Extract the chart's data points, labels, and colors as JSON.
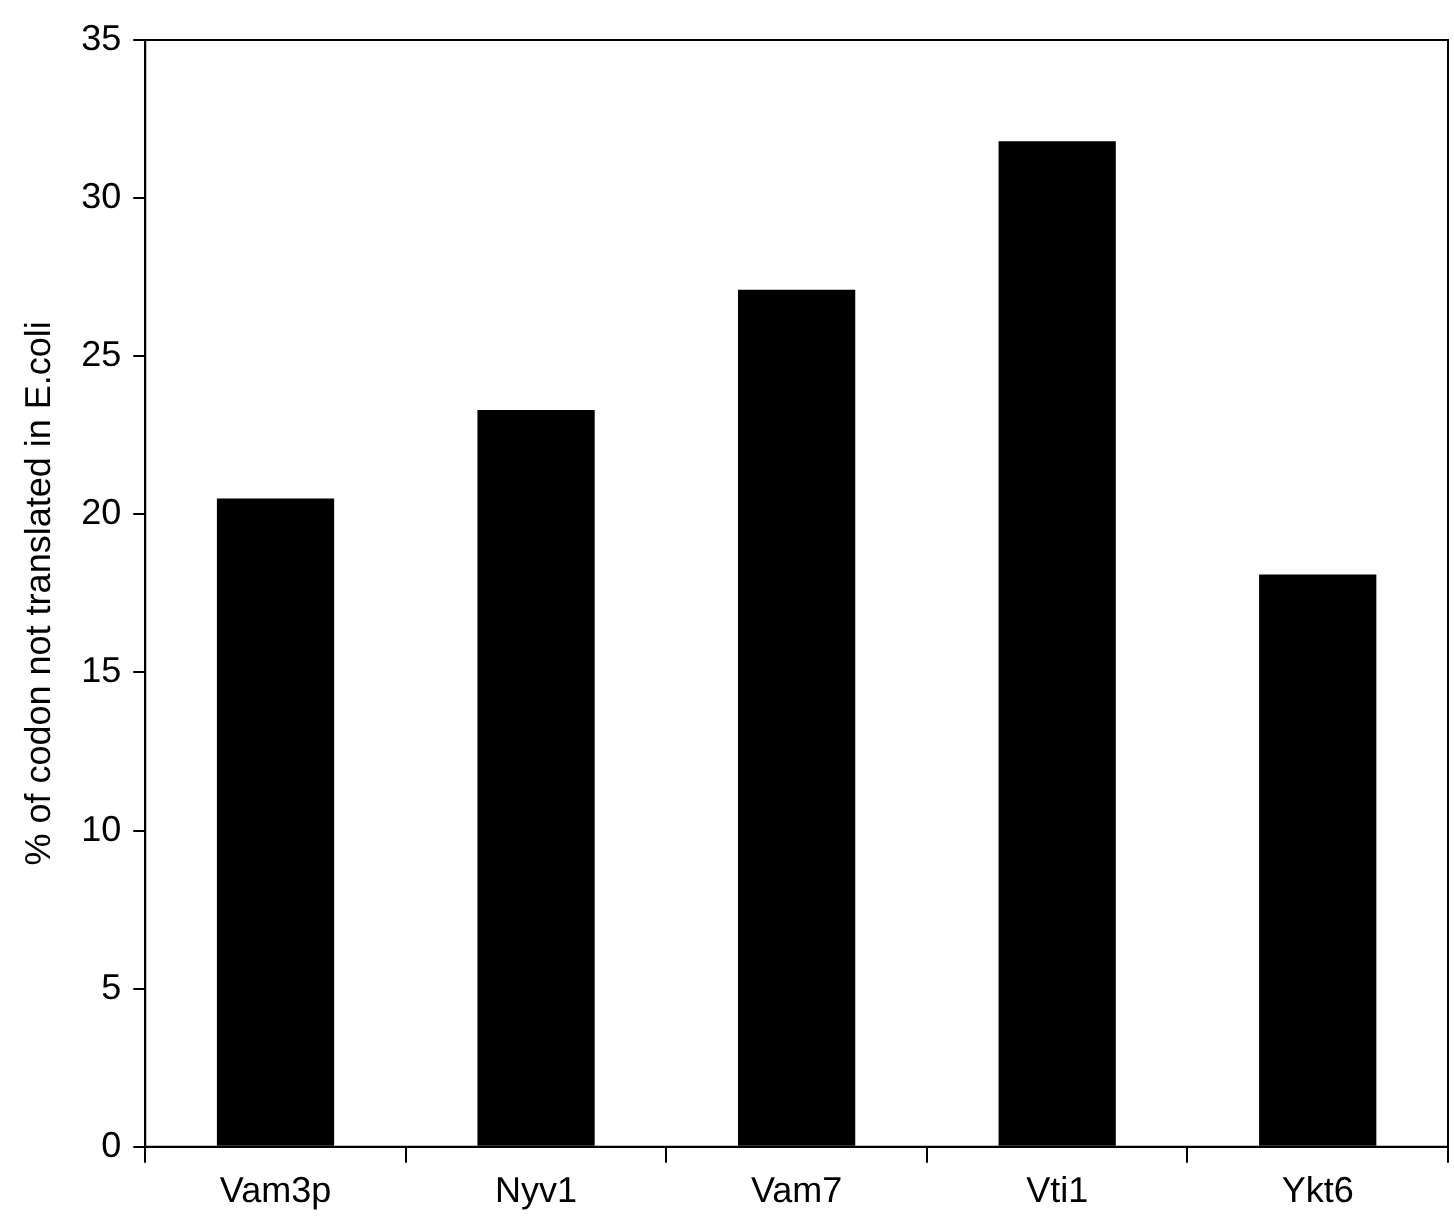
{
  "chart_data": {
    "type": "bar",
    "ylabel": "% of codon not translated in E.coli",
    "categories": [
      "Vam3p",
      "Nyv1",
      "Vam7",
      "Vti1",
      "Ykt6"
    ],
    "values": [
      20.5,
      23.3,
      27.1,
      31.8,
      18.1
    ],
    "color": "#000000",
    "ylim": [
      0,
      35
    ],
    "yticks": [
      0,
      5,
      10,
      15,
      20,
      25,
      30,
      35
    ],
    "grid": false,
    "legend": false
  }
}
